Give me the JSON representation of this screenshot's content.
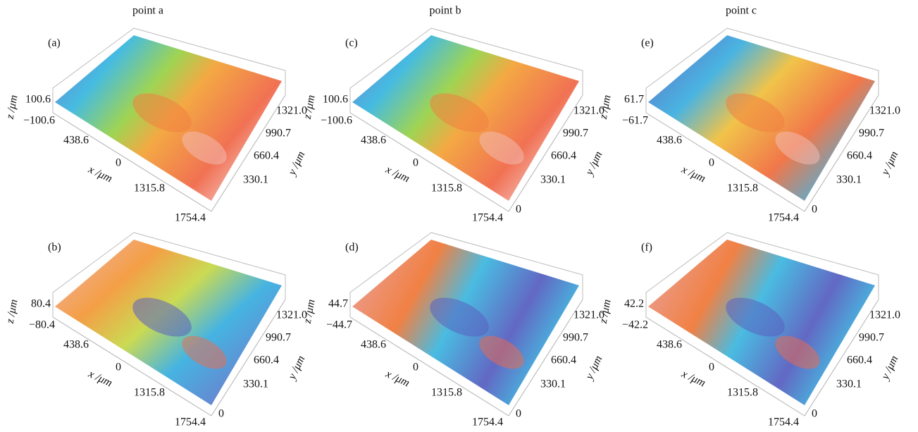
{
  "columns": [
    "point a",
    "point b",
    "point c"
  ],
  "axis_labels": {
    "z": "z /μm",
    "x": "x /μm",
    "y": "y /μm"
  },
  "panels": [
    {
      "label": "(a)",
      "z_ticks": [
        "100.6",
        "−100.6"
      ],
      "x_ticks": [
        "438.6",
        "0",
        "1315.8",
        "1754.4"
      ],
      "y_ticks": [
        "1321.0",
        "990.7",
        "660.4",
        "330.1"
      ]
    },
    {
      "label": "(b)",
      "z_ticks": [
        "80.4",
        "−80.4"
      ],
      "x_ticks": [
        "438.6",
        "0",
        "1315.8",
        "1754.4"
      ],
      "y_ticks": [
        "1321.0",
        "990.7",
        "660.4",
        "330.1",
        "0"
      ]
    },
    {
      "label": "(c)",
      "z_ticks": [
        "100.6",
        "−100.6"
      ],
      "x_ticks": [
        "438.6",
        "0",
        "1315.8",
        "1754.4"
      ],
      "y_ticks": [
        "1321.0",
        "990.7",
        "660.4",
        "330.1",
        "0"
      ]
    },
    {
      "label": "(d)",
      "z_ticks": [
        "44.7",
        "−44.7"
      ],
      "x_ticks": [
        "438.6",
        "0",
        "1315.8",
        "1754.4"
      ],
      "y_ticks": [
        "1321.0",
        "990.7",
        "660.4",
        "330.1",
        "0"
      ]
    },
    {
      "label": "(e)",
      "z_ticks": [
        "61.7",
        "−61.7"
      ],
      "x_ticks": [
        "438.6",
        "0",
        "1315.8",
        "1754.4"
      ],
      "y_ticks": [
        "1321.0",
        "990.7",
        "660.4",
        "330.1",
        "0"
      ]
    },
    {
      "label": "(f)",
      "z_ticks": [
        "42.2",
        "−42.2"
      ],
      "x_ticks": [
        "438.6",
        "0",
        "1315.8",
        "1754.4"
      ],
      "y_ticks": [
        "1321.0",
        "990.7",
        "660.4",
        "330.1",
        "0"
      ]
    }
  ]
}
